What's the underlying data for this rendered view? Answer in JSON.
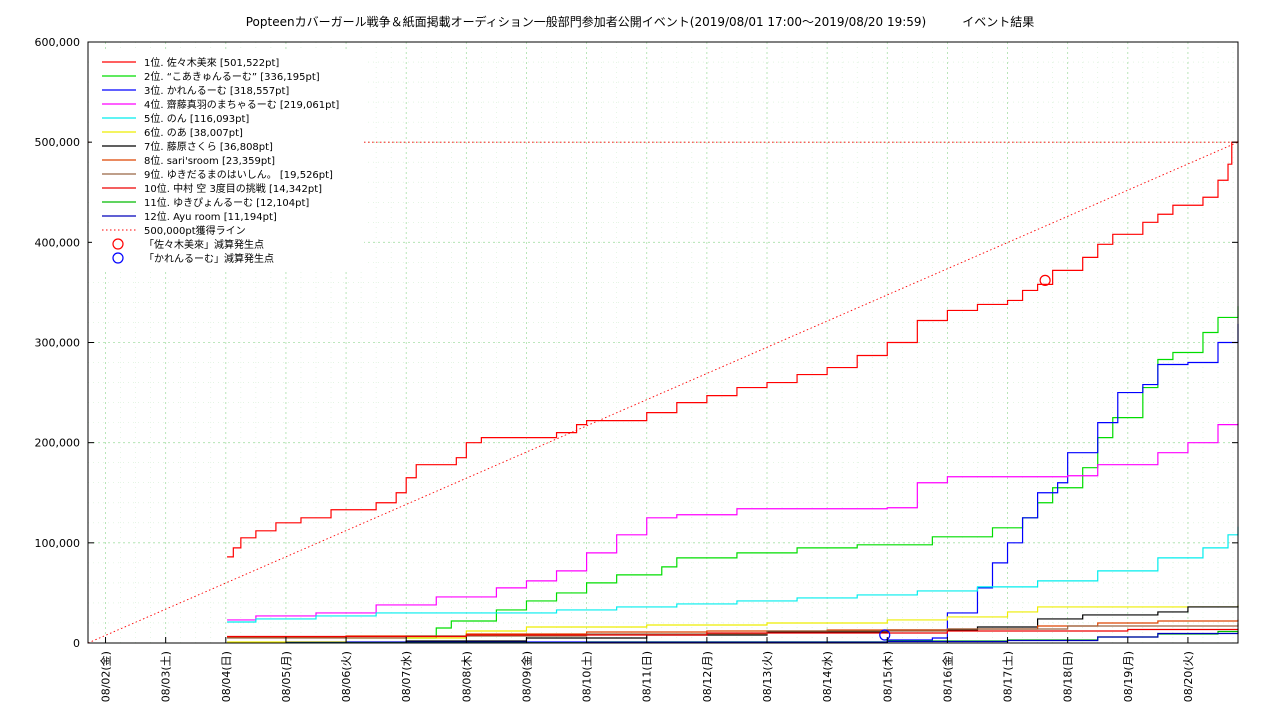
{
  "chart_data": {
    "type": "line",
    "title": "Popteenカバーガール戦争＆紙面掲載オーディション一般部門参加者公開イベント(2019/08/01 17:00～2019/08/20 19:59)　　　イベント結果",
    "xlabel": "",
    "ylabel": "",
    "x_ticks": [
      "08/02(金)",
      "08/03(土)",
      "08/04(日)",
      "08/05(月)",
      "08/06(火)",
      "08/07(水)",
      "08/08(木)",
      "08/09(金)",
      "08/10(土)",
      "08/11(日)",
      "08/12(月)",
      "08/13(火)",
      "08/14(水)",
      "08/15(木)",
      "08/16(金)",
      "08/17(土)",
      "08/18(日)",
      "08/19(月)",
      "08/20(火)"
    ],
    "y_ticks": [
      "0",
      "100,000",
      "200,000",
      "300,000",
      "400,000",
      "500,000",
      "600,000"
    ],
    "xlim": [
      "2019-08-01 17:00",
      "2019-08-20 19:59"
    ],
    "ylim": [
      0,
      600000
    ],
    "grid": true,
    "legend_position": "top-left",
    "series": [
      {
        "name": "1位. 佐々木美來 [501,522pt]",
        "color": "#ff0000",
        "points": [
          [
            "2019-08-04 00:30",
            86000
          ],
          [
            "2019-08-04 03:00",
            95000
          ],
          [
            "2019-08-04 06:00",
            105000
          ],
          [
            "2019-08-04 12:00",
            112000
          ],
          [
            "2019-08-04 20:00",
            120000
          ],
          [
            "2019-08-05 06:00",
            125000
          ],
          [
            "2019-08-05 18:00",
            133000
          ],
          [
            "2019-08-06 12:00",
            140000
          ],
          [
            "2019-08-06 20:00",
            150000
          ],
          [
            "2019-08-07 00:00",
            165000
          ],
          [
            "2019-08-07 04:00",
            178000
          ],
          [
            "2019-08-07 20:00",
            185000
          ],
          [
            "2019-08-08 00:00",
            200000
          ],
          [
            "2019-08-08 06:00",
            205000
          ],
          [
            "2019-08-09 12:00",
            210000
          ],
          [
            "2019-08-09 20:00",
            218000
          ],
          [
            "2019-08-10 00:00",
            222000
          ],
          [
            "2019-08-11 00:00",
            230000
          ],
          [
            "2019-08-11 12:00",
            240000
          ],
          [
            "2019-08-12 00:00",
            247000
          ],
          [
            "2019-08-12 12:00",
            255000
          ],
          [
            "2019-08-13 00:00",
            260000
          ],
          [
            "2019-08-13 12:00",
            268000
          ],
          [
            "2019-08-14 00:00",
            275000
          ],
          [
            "2019-08-14 12:00",
            287000
          ],
          [
            "2019-08-15 00:00",
            300000
          ],
          [
            "2019-08-15 12:00",
            322000
          ],
          [
            "2019-08-16 00:00",
            332000
          ],
          [
            "2019-08-16 12:00",
            338000
          ],
          [
            "2019-08-17 00:00",
            342000
          ],
          [
            "2019-08-17 06:00",
            352000
          ],
          [
            "2019-08-17 12:00",
            358000
          ],
          [
            "2019-08-17 18:00",
            372000
          ],
          [
            "2019-08-18 06:00",
            385000
          ],
          [
            "2019-08-18 12:00",
            398000
          ],
          [
            "2019-08-18 18:00",
            408000
          ],
          [
            "2019-08-19 06:00",
            420000
          ],
          [
            "2019-08-19 12:00",
            428000
          ],
          [
            "2019-08-19 18:00",
            437000
          ],
          [
            "2019-08-20 06:00",
            445000
          ],
          [
            "2019-08-20 12:00",
            462000
          ],
          [
            "2019-08-20 16:00",
            478000
          ],
          [
            "2019-08-20 17:30",
            500000
          ],
          [
            "2019-08-20 19:59",
            501522
          ]
        ]
      },
      {
        "name": "2位. “こあきゅんるーむ” [336,195pt]",
        "color": "#00dd00",
        "points": [
          [
            "2019-08-07 00:00",
            5000
          ],
          [
            "2019-08-07 12:00",
            15000
          ],
          [
            "2019-08-07 18:00",
            22000
          ],
          [
            "2019-08-08 12:00",
            33000
          ],
          [
            "2019-08-09 00:00",
            42000
          ],
          [
            "2019-08-09 12:00",
            50000
          ],
          [
            "2019-08-10 00:00",
            60000
          ],
          [
            "2019-08-10 12:00",
            68000
          ],
          [
            "2019-08-11 06:00",
            76000
          ],
          [
            "2019-08-11 12:00",
            85000
          ],
          [
            "2019-08-12 12:00",
            90000
          ],
          [
            "2019-08-13 12:00",
            95000
          ],
          [
            "2019-08-14 12:00",
            98000
          ],
          [
            "2019-08-15 18:00",
            106000
          ],
          [
            "2019-08-16 18:00",
            115000
          ],
          [
            "2019-08-17 06:00",
            125000
          ],
          [
            "2019-08-17 12:00",
            140000
          ],
          [
            "2019-08-17 18:00",
            155000
          ],
          [
            "2019-08-18 06:00",
            175000
          ],
          [
            "2019-08-18 12:00",
            205000
          ],
          [
            "2019-08-18 18:00",
            225000
          ],
          [
            "2019-08-19 06:00",
            255000
          ],
          [
            "2019-08-19 12:00",
            283000
          ],
          [
            "2019-08-19 18:00",
            290000
          ],
          [
            "2019-08-20 06:00",
            310000
          ],
          [
            "2019-08-20 12:00",
            325000
          ],
          [
            "2019-08-20 19:59",
            336195
          ]
        ]
      },
      {
        "name": "3位. かれんるーむ [318,557pt]",
        "color": "#0000ff",
        "points": [
          [
            "2019-08-05 00:00",
            1000
          ],
          [
            "2019-08-15 00:00",
            3000
          ],
          [
            "2019-08-15 18:00",
            5000
          ],
          [
            "2019-08-16 00:00",
            30000
          ],
          [
            "2019-08-16 12:00",
            55000
          ],
          [
            "2019-08-16 18:00",
            80000
          ],
          [
            "2019-08-17 00:00",
            100000
          ],
          [
            "2019-08-17 06:00",
            125000
          ],
          [
            "2019-08-17 12:00",
            150000
          ],
          [
            "2019-08-17 20:00",
            160000
          ],
          [
            "2019-08-18 00:00",
            190000
          ],
          [
            "2019-08-18 12:00",
            220000
          ],
          [
            "2019-08-18 20:00",
            250000
          ],
          [
            "2019-08-19 06:00",
            258000
          ],
          [
            "2019-08-19 12:00",
            278000
          ],
          [
            "2019-08-20 00:00",
            280000
          ],
          [
            "2019-08-20 12:00",
            300000
          ],
          [
            "2019-08-20 19:59",
            318557
          ]
        ]
      },
      {
        "name": "4位. 齋藤真羽のまちゃるーむ [219,061pt]",
        "color": "#ff00ff",
        "points": [
          [
            "2019-08-04 00:30",
            23000
          ],
          [
            "2019-08-04 12:00",
            27000
          ],
          [
            "2019-08-05 12:00",
            30000
          ],
          [
            "2019-08-06 12:00",
            38000
          ],
          [
            "2019-08-07 12:00",
            46000
          ],
          [
            "2019-08-08 12:00",
            55000
          ],
          [
            "2019-08-09 00:00",
            62000
          ],
          [
            "2019-08-09 12:00",
            72000
          ],
          [
            "2019-08-10 00:00",
            90000
          ],
          [
            "2019-08-10 12:00",
            108000
          ],
          [
            "2019-08-11 00:00",
            125000
          ],
          [
            "2019-08-11 12:00",
            128000
          ],
          [
            "2019-08-12 12:00",
            134000
          ],
          [
            "2019-08-15 00:00",
            135000
          ],
          [
            "2019-08-15 12:00",
            160000
          ],
          [
            "2019-08-16 00:00",
            166000
          ],
          [
            "2019-08-18 00:00",
            167000
          ],
          [
            "2019-08-18 12:00",
            178000
          ],
          [
            "2019-08-19 12:00",
            190000
          ],
          [
            "2019-08-20 00:00",
            200000
          ],
          [
            "2019-08-20 12:00",
            218000
          ],
          [
            "2019-08-20 19:59",
            219061
          ]
        ]
      },
      {
        "name": "5位. のん [116,093pt]",
        "color": "#00eeee",
        "points": [
          [
            "2019-08-04 00:30",
            21000
          ],
          [
            "2019-08-04 12:00",
            24000
          ],
          [
            "2019-08-05 12:00",
            27000
          ],
          [
            "2019-08-06 12:00",
            30000
          ],
          [
            "2019-08-08 00:00",
            30000
          ],
          [
            "2019-08-09 12:00",
            33000
          ],
          [
            "2019-08-10 12:00",
            36000
          ],
          [
            "2019-08-11 12:00",
            39000
          ],
          [
            "2019-08-12 12:00",
            42000
          ],
          [
            "2019-08-13 12:00",
            45000
          ],
          [
            "2019-08-14 12:00",
            48000
          ],
          [
            "2019-08-15 12:00",
            52000
          ],
          [
            "2019-08-16 12:00",
            56000
          ],
          [
            "2019-08-17 12:00",
            62000
          ],
          [
            "2019-08-18 12:00",
            72000
          ],
          [
            "2019-08-19 12:00",
            85000
          ],
          [
            "2019-08-20 06:00",
            95000
          ],
          [
            "2019-08-20 16:00",
            108000
          ],
          [
            "2019-08-20 19:59",
            116093
          ]
        ]
      },
      {
        "name": "6位. のあ [38,007pt]",
        "color": "#eeee00",
        "points": [
          [
            "2019-08-04 00:30",
            1000
          ],
          [
            "2019-08-06 00:00",
            5000
          ],
          [
            "2019-08-08 00:00",
            12000
          ],
          [
            "2019-08-09 00:00",
            16000
          ],
          [
            "2019-08-11 00:00",
            18000
          ],
          [
            "2019-08-13 00:00",
            20000
          ],
          [
            "2019-08-15 00:00",
            23000
          ],
          [
            "2019-08-16 00:00",
            26000
          ],
          [
            "2019-08-17 00:00",
            31000
          ],
          [
            "2019-08-17 12:00",
            36000
          ],
          [
            "2019-08-20 19:59",
            38007
          ]
        ]
      },
      {
        "name": "7位. 藤原さくら [36,808pt]",
        "color": "#000000",
        "points": [
          [
            "2019-08-05 00:00",
            500
          ],
          [
            "2019-08-07 00:00",
            2000
          ],
          [
            "2019-08-09 00:00",
            5000
          ],
          [
            "2019-08-11 00:00",
            8000
          ],
          [
            "2019-08-13 00:00",
            11000
          ],
          [
            "2019-08-15 00:00",
            13000
          ],
          [
            "2019-08-16 12:00",
            16000
          ],
          [
            "2019-08-17 12:00",
            24000
          ],
          [
            "2019-08-18 06:00",
            28000
          ],
          [
            "2019-08-19 12:00",
            31000
          ],
          [
            "2019-08-20 00:00",
            36000
          ],
          [
            "2019-08-20 19:59",
            36808
          ]
        ]
      },
      {
        "name": "8位. sari'sroom [23,359pt]",
        "color": "#dd4400",
        "points": [
          [
            "2019-08-04 00:30",
            6000
          ],
          [
            "2019-08-06 00:00",
            7000
          ],
          [
            "2019-08-08 00:00",
            9000
          ],
          [
            "2019-08-10 00:00",
            11000
          ],
          [
            "2019-08-12 00:00",
            12000
          ],
          [
            "2019-08-14 00:00",
            13000
          ],
          [
            "2019-08-16 00:00",
            14000
          ],
          [
            "2019-08-17 12:00",
            17000
          ],
          [
            "2019-08-18 12:00",
            20000
          ],
          [
            "2019-08-19 12:00",
            22000
          ],
          [
            "2019-08-20 19:59",
            23359
          ]
        ]
      },
      {
        "name": "9位. ゆきだるまのはいしん。 [19,526pt]",
        "color": "#996644",
        "points": [
          [
            "2019-08-04 00:30",
            5000
          ],
          [
            "2019-08-07 00:00",
            7000
          ],
          [
            "2019-08-10 00:00",
            9000
          ],
          [
            "2019-08-13 00:00",
            12000
          ],
          [
            "2019-08-16 00:00",
            14000
          ],
          [
            "2019-08-18 00:00",
            17000
          ],
          [
            "2019-08-20 19:59",
            19526
          ]
        ]
      },
      {
        "name": "10位. 中村 空 3度目の挑戦 [14,342pt]",
        "color": "#ee0000",
        "points": [
          [
            "2019-08-04 00:30",
            6500
          ],
          [
            "2019-08-08 00:00",
            8000
          ],
          [
            "2019-08-12 00:00",
            10000
          ],
          [
            "2019-08-16 00:00",
            12000
          ],
          [
            "2019-08-19 00:00",
            13500
          ],
          [
            "2019-08-20 19:59",
            14342
          ]
        ]
      },
      {
        "name": "11位. ゆきぴょんるーむ [12,104pt]",
        "color": "#00bb00",
        "points": [
          [
            "2019-08-05 00:00",
            300
          ],
          [
            "2019-08-10 00:00",
            1000
          ],
          [
            "2019-08-15 00:00",
            2000
          ],
          [
            "2019-08-17 00:00",
            3000
          ],
          [
            "2019-08-18 12:00",
            6000
          ],
          [
            "2019-08-19 12:00",
            9000
          ],
          [
            "2019-08-20 12:00",
            11500
          ],
          [
            "2019-08-20 19:59",
            12104
          ]
        ]
      },
      {
        "name": "12位. Ayu room [11,194pt]",
        "color": "#0000bb",
        "points": [
          [
            "2019-08-05 00:00",
            200
          ],
          [
            "2019-08-10 00:00",
            800
          ],
          [
            "2019-08-15 00:00",
            1500
          ],
          [
            "2019-08-17 00:00",
            2500
          ],
          [
            "2019-08-18 12:00",
            6000
          ],
          [
            "2019-08-19 12:00",
            9500
          ],
          [
            "2019-08-20 19:59",
            11194
          ]
        ]
      }
    ],
    "reference_lines": [
      {
        "name": "500,000pt獲得ライン",
        "color": "#ff0000",
        "points": [
          [
            "2019-08-01 17:00",
            0
          ],
          [
            "2019-08-20 19:59",
            500000
          ]
        ]
      },
      {
        "name": "",
        "color": "#ff0000",
        "horizontal_y": 500000
      }
    ],
    "markers": [
      {
        "name": "「佐々木美來」減算発生点",
        "color": "#ff0000",
        "x": "2019-08-17 15:00",
        "y": 362000
      },
      {
        "name": "「かれんるーむ」減算発生点",
        "color": "#0000ff",
        "x": "2019-08-14 23:00",
        "y": 8000
      }
    ]
  }
}
